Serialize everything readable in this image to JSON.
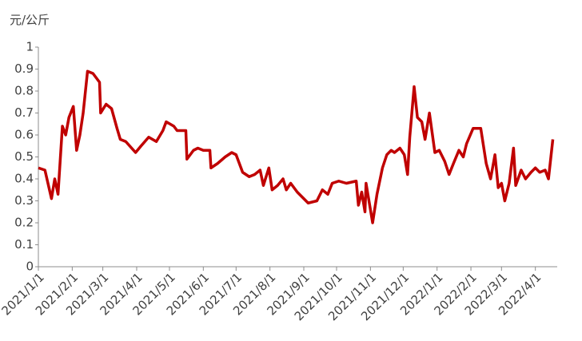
{
  "chart_data": {
    "type": "line",
    "y_label": "元/公斤",
    "x": [
      "2021/1/1",
      "2021/1/7",
      "2021/1/13",
      "2021/1/16",
      "2021/1/19",
      "2021/1/23",
      "2021/1/26",
      "2021/1/29",
      "2021/2/2",
      "2021/2/5",
      "2021/2/8",
      "2021/2/11",
      "2021/2/15",
      "2021/2/20",
      "2021/2/26",
      "2021/2/27",
      "2021/3/4",
      "2021/3/9",
      "2021/3/14",
      "2021/3/17",
      "2021/3/22",
      "2021/3/31",
      "2021/4/5",
      "2021/4/12",
      "2021/4/19",
      "2021/4/25",
      "2021/4/28",
      "2021/5/5",
      "2021/5/8",
      "2021/5/16",
      "2021/5/17",
      "2021/5/23",
      "2021/5/27",
      "2021/6/1",
      "2021/6/7",
      "2021/6/8",
      "2021/6/14",
      "2021/6/21",
      "2021/6/27",
      "2021/7/1",
      "2021/7/7",
      "2021/7/13",
      "2021/7/18",
      "2021/7/23",
      "2021/7/26",
      "2021/7/31",
      "2021/8/3",
      "2021/8/8",
      "2021/8/13",
      "2021/8/16",
      "2021/8/20",
      "2021/8/26",
      "2021/9/5",
      "2021/9/13",
      "2021/9/18",
      "2021/9/23",
      "2021/9/27",
      "2021/10/3",
      "2021/10/10",
      "2021/10/19",
      "2021/10/21",
      "2021/10/24",
      "2021/10/27",
      "2021/10/28",
      "2021/11/3",
      "2021/11/7",
      "2021/11/12",
      "2021/11/16",
      "2021/11/20",
      "2021/11/23",
      "2021/11/28",
      "2021/12/2",
      "2021/12/5",
      "2021/12/7",
      "2021/12/11",
      "2021/12/14",
      "2021/12/18",
      "2021/12/21",
      "2021/12/25",
      "2021/12/30",
      "2022/1/3",
      "2022/1/8",
      "2022/1/12",
      "2022/1/16",
      "2022/1/21",
      "2022/1/25",
      "2022/1/28",
      "2022/2/3",
      "2022/2/10",
      "2022/2/15",
      "2022/2/19",
      "2022/2/23",
      "2022/2/26",
      "2022/3/1",
      "2022/3/4",
      "2022/3/8",
      "2022/3/12",
      "2022/3/14",
      "2022/3/19",
      "2022/3/23",
      "2022/3/28",
      "2022/4/1",
      "2022/4/5",
      "2022/4/10",
      "2022/4/13",
      "2022/4/17"
    ],
    "series": [
      {
        "name": "price",
        "color": "#c00000",
        "values": [
          0.45,
          0.44,
          0.31,
          0.4,
          0.33,
          0.64,
          0.6,
          0.68,
          0.73,
          0.53,
          0.6,
          0.7,
          0.89,
          0.88,
          0.84,
          0.7,
          0.74,
          0.72,
          0.63,
          0.58,
          0.57,
          0.52,
          0.55,
          0.59,
          0.57,
          0.62,
          0.66,
          0.64,
          0.62,
          0.62,
          0.49,
          0.53,
          0.54,
          0.53,
          0.53,
          0.45,
          0.47,
          0.5,
          0.52,
          0.51,
          0.43,
          0.41,
          0.42,
          0.44,
          0.37,
          0.45,
          0.35,
          0.37,
          0.4,
          0.35,
          0.38,
          0.34,
          0.29,
          0.3,
          0.35,
          0.33,
          0.38,
          0.39,
          0.38,
          0.39,
          0.28,
          0.34,
          0.25,
          0.38,
          0.2,
          0.33,
          0.45,
          0.51,
          0.53,
          0.52,
          0.54,
          0.51,
          0.42,
          0.59,
          0.82,
          0.68,
          0.66,
          0.58,
          0.7,
          0.52,
          0.53,
          0.48,
          0.42,
          0.47,
          0.53,
          0.5,
          0.56,
          0.63,
          0.63,
          0.47,
          0.4,
          0.51,
          0.36,
          0.38,
          0.3,
          0.38,
          0.54,
          0.37,
          0.44,
          0.4,
          0.43,
          0.45,
          0.43,
          0.44,
          0.4,
          0.58
        ]
      }
    ],
    "xlim": [
      "2021/1/1",
      "2022/4/21"
    ],
    "xticks": [
      "2021/1/1",
      "2021/2/1",
      "2021/3/1",
      "2021/4/1",
      "2021/5/1",
      "2021/6/1",
      "2021/7/1",
      "2021/8/1",
      "2021/9/1",
      "2021/10/1",
      "2021/11/1",
      "2021/12/1",
      "2022/1/1",
      "2022/2/1",
      "2022/3/1",
      "2022/4/1"
    ],
    "ylim": [
      0,
      1
    ],
    "yticks": [
      0,
      0.1,
      0.2,
      0.3,
      0.4,
      0.5,
      0.6,
      0.7,
      0.8,
      0.9,
      1
    ],
    "grid": false
  }
}
